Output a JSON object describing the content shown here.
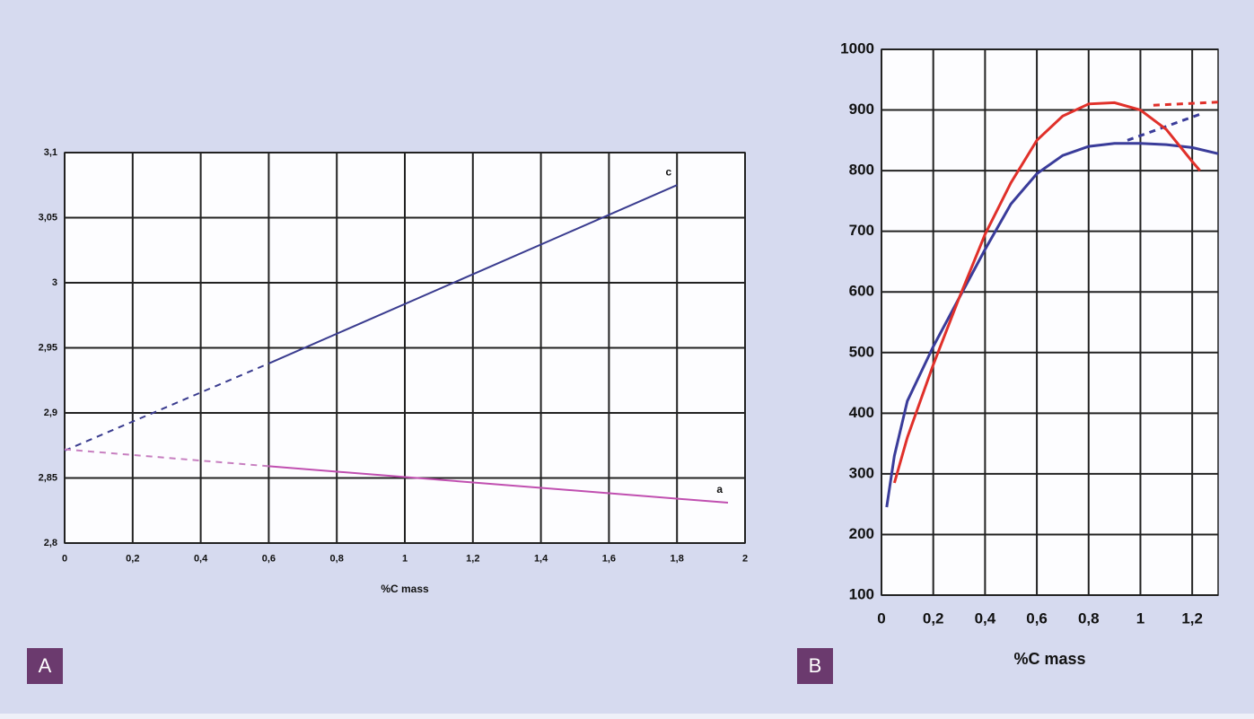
{
  "chart_data": [
    {
      "type": "line",
      "panel_label": "A",
      "xlabel": "%C mass",
      "xlim": [
        0,
        2
      ],
      "ylim": [
        2.8,
        3.1
      ],
      "grid": true,
      "xticks": [
        0,
        {
          "value": 0.2,
          "label": "0,2"
        },
        {
          "value": 0.4,
          "label": "0,4"
        },
        {
          "value": 0.6,
          "label": "0,6"
        },
        {
          "value": 0.8,
          "label": "0,8"
        },
        1,
        {
          "value": 1.2,
          "label": "1,2"
        },
        {
          "value": 1.4,
          "label": "1,4"
        },
        {
          "value": 1.6,
          "label": "1,6"
        },
        {
          "value": 1.8,
          "label": "1,8"
        },
        2
      ],
      "yticks": [
        {
          "value": 2.8,
          "label": "2,8"
        },
        {
          "value": 2.85,
          "label": "2,85"
        },
        {
          "value": 2.9,
          "label": "2,9"
        },
        {
          "value": 2.95,
          "label": "2,95"
        },
        3,
        {
          "value": 3.05,
          "label": "3,05"
        },
        {
          "value": 3.1,
          "label": "3,1"
        }
      ],
      "series": [
        {
          "color": "#3a3c8f",
          "style": "dashed",
          "x": [
            0,
            0.6
          ],
          "values": [
            2.871,
            2.938
          ]
        },
        {
          "name": "c",
          "color": "#3a3c8f",
          "style": "solid",
          "x": [
            0.6,
            1.8
          ],
          "values": [
            2.938,
            3.075
          ]
        },
        {
          "color": "#c77fc0",
          "style": "dashed",
          "x": [
            0,
            0.6
          ],
          "values": [
            2.872,
            2.859
          ]
        },
        {
          "name": "a",
          "color": "#c04fb0",
          "style": "solid",
          "x": [
            0.6,
            1.95
          ],
          "values": [
            2.859,
            2.831
          ]
        }
      ]
    },
    {
      "type": "line",
      "panel_label": "B",
      "xlabel": "%C mass",
      "xlim": [
        0,
        1.3
      ],
      "ylim": [
        100,
        1000
      ],
      "grid": true,
      "xticks": [
        0,
        {
          "value": 0.2,
          "label": "0,2"
        },
        {
          "value": 0.4,
          "label": "0,4"
        },
        {
          "value": 0.6,
          "label": "0,6"
        },
        {
          "value": 0.8,
          "label": "0,8"
        },
        1,
        {
          "value": 1.2,
          "label": "1,2"
        }
      ],
      "yticks": [
        100,
        200,
        300,
        400,
        500,
        600,
        700,
        800,
        900,
        1000
      ],
      "series": [
        {
          "color": "#3a3c9a",
          "style": "solid",
          "x": [
            0.02,
            0.05,
            0.1,
            0.2,
            0.3,
            0.4,
            0.5,
            0.6,
            0.7,
            0.8,
            0.9,
            1.0,
            1.1,
            1.2,
            1.3
          ],
          "values": [
            245,
            330,
            420,
            510,
            590,
            670,
            745,
            795,
            825,
            840,
            845,
            845,
            843,
            838,
            828
          ]
        },
        {
          "color": "#3a3c9a",
          "style": "dashed",
          "x": [
            0.95,
            1.23
          ],
          "values": [
            850,
            893
          ]
        },
        {
          "color": "#e0302a",
          "style": "solid",
          "x": [
            0.05,
            0.1,
            0.2,
            0.3,
            0.4,
            0.5,
            0.6,
            0.7,
            0.8,
            0.9,
            1.0,
            1.1,
            1.2,
            1.23
          ],
          "values": [
            285,
            360,
            480,
            590,
            695,
            780,
            850,
            890,
            910,
            912,
            900,
            868,
            815,
            800
          ]
        },
        {
          "color": "#e0302a",
          "style": "dashed",
          "x": [
            1.05,
            1.3
          ],
          "values": [
            908,
            913
          ]
        }
      ]
    }
  ]
}
